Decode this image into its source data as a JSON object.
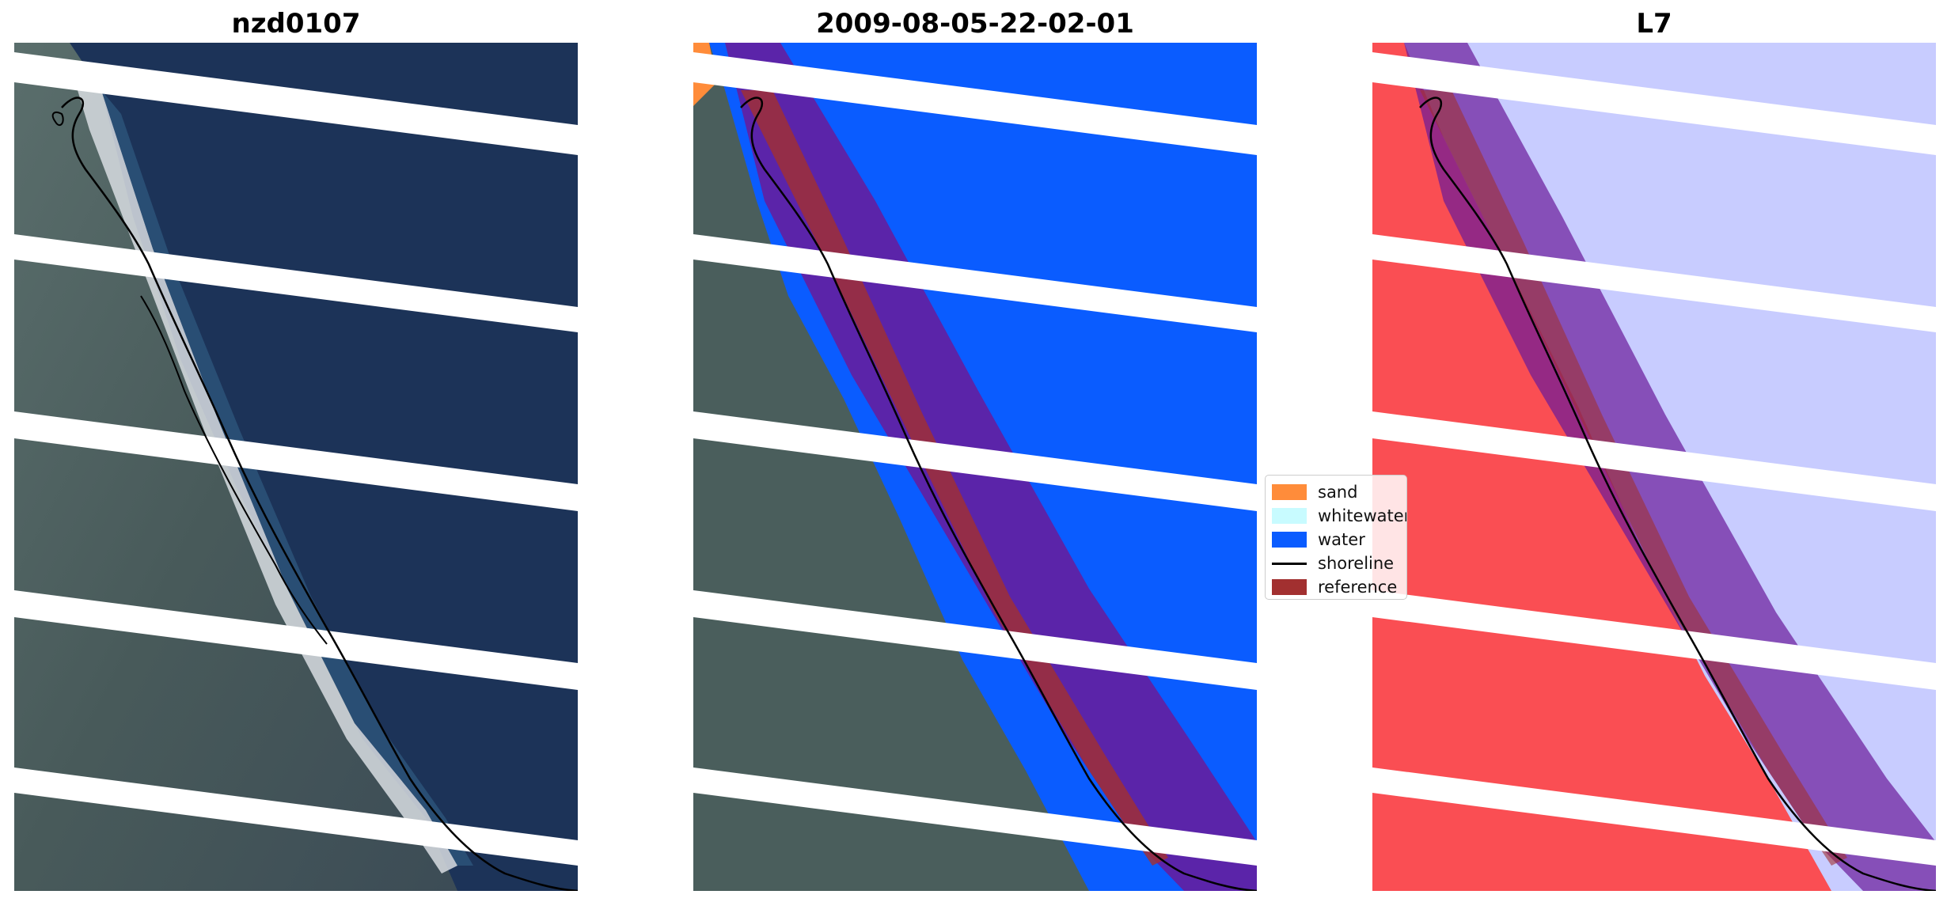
{
  "panels": [
    {
      "title": "nzd0107"
    },
    {
      "title": "2009-08-05-22-02-01"
    },
    {
      "title": "L7"
    }
  ],
  "legend": {
    "items": [
      {
        "label": "sand",
        "color": "#ff8c3a"
      },
      {
        "label": "whitewater",
        "color": "#c8fbff"
      },
      {
        "label": "water",
        "color": "#0a5cff"
      },
      {
        "label": "shoreline",
        "color": "#000000"
      },
      {
        "label": "reference",
        "color": "#a23030"
      }
    ]
  },
  "colors": {
    "ocean_dark": "#1c3358",
    "land": "#4a5e5c",
    "water_class": "#0a5cff",
    "buffer_purple": "#6a1a9a",
    "index_red": "#ff4040",
    "index_blue": "#c8ccff",
    "scanline_gap": "#ffffff"
  }
}
